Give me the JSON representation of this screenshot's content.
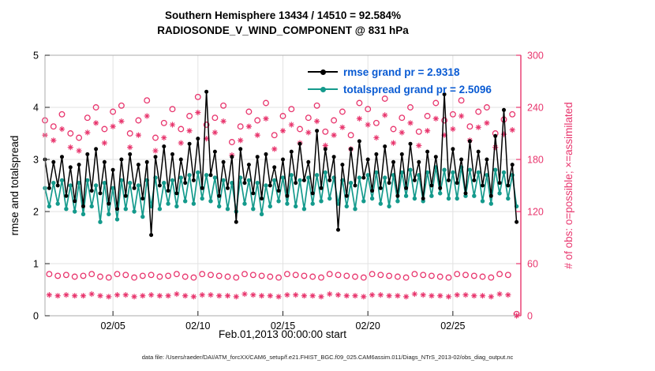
{
  "ui": {
    "legend_text_color": "#0a5bd3",
    "grid_color": "#e2e2e2",
    "frame_color": "#ababab",
    "tick_color": "#222222"
  },
  "chart_data": {
    "type": "line",
    "title_line1": "Southern Hemisphere 13434 / 14510 = 92.584%",
    "title_line2": "RADIOSONDE_V_WIND_COMPONENT @ 831 hPa",
    "caption": "data file: /Users/raeder/DAI/ATM_forcXX/CAM6_setup/f.e21.FHIST_BGC.f09_025.CAM6assim.011/Diags_NTrS_2013-02/obs_diag_output.nc",
    "time_step_hours": 6,
    "x_axis": {
      "label": "Feb.01,2013 00:00:00 start",
      "tick_labels": [
        "02/05",
        "02/10",
        "02/15",
        "02/20",
        "02/25"
      ],
      "tick_days": [
        4,
        9,
        14,
        19,
        24
      ],
      "range_days": [
        0,
        28
      ]
    },
    "y_left": {
      "label": "rmse and totalspread",
      "ticks": [
        0,
        1,
        2,
        3,
        4,
        5
      ],
      "range": [
        0,
        5
      ]
    },
    "y_right": {
      "label": "# of obs: o=possible; ×=assimilated",
      "ticks": [
        0,
        60,
        120,
        180,
        240,
        300
      ],
      "range": [
        0,
        300
      ],
      "color": "#e8356d"
    },
    "series": [
      {
        "name": "rmse",
        "legend": "rmse grand pr = 2.9318",
        "color": "#000000",
        "axis": "left",
        "marker": "dot",
        "values": [
          3.0,
          2.45,
          2.95,
          2.5,
          3.05,
          2.3,
          2.85,
          2.2,
          2.9,
          2.1,
          3.1,
          2.4,
          3.2,
          2.35,
          2.95,
          2.15,
          2.8,
          2.05,
          3.0,
          2.3,
          3.1,
          2.45,
          2.9,
          2.25,
          2.95,
          1.55,
          3.05,
          2.5,
          3.25,
          2.4,
          3.1,
          2.35,
          3.0,
          2.55,
          3.3,
          2.6,
          3.4,
          2.45,
          4.3,
          2.7,
          3.15,
          2.3,
          2.95,
          2.45,
          3.05,
          1.8,
          3.2,
          2.55,
          2.9,
          2.35,
          3.05,
          2.25,
          3.1,
          2.5,
          2.85,
          2.4,
          3.0,
          2.3,
          3.15,
          2.55,
          3.3,
          2.6,
          2.95,
          2.35,
          3.55,
          2.45,
          3.2,
          2.6,
          3.05,
          1.65,
          2.9,
          2.3,
          3.2,
          2.5,
          3.35,
          2.65,
          3.0,
          2.4,
          3.1,
          2.45,
          3.25,
          2.55,
          2.95,
          2.3,
          3.1,
          2.45,
          3.3,
          2.6,
          2.95,
          2.25,
          3.15,
          2.5,
          3.05,
          2.45,
          4.25,
          2.6,
          3.2,
          2.55,
          3.0,
          2.35,
          3.35,
          2.6,
          3.15,
          2.5,
          3.0,
          2.3,
          3.45,
          2.55,
          3.95,
          2.5,
          2.9,
          1.8
        ]
      },
      {
        "name": "totalspread",
        "legend": "totalspread grand pr = 2.5096",
        "color": "#149a8c",
        "axis": "left",
        "marker": "dot",
        "values": [
          2.45,
          2.1,
          2.55,
          2.15,
          2.6,
          2.05,
          2.5,
          2.0,
          2.55,
          1.95,
          2.6,
          2.1,
          2.5,
          1.8,
          2.55,
          1.95,
          2.45,
          1.85,
          2.6,
          2.05,
          2.55,
          2.0,
          2.5,
          1.9,
          2.6,
          2.1,
          2.65,
          2.05,
          2.55,
          2.15,
          2.6,
          2.1,
          2.65,
          2.2,
          2.7,
          2.15,
          2.75,
          2.25,
          2.7,
          2.2,
          2.65,
          2.1,
          2.6,
          2.05,
          2.55,
          2.0,
          2.65,
          2.15,
          2.6,
          2.05,
          2.55,
          1.95,
          2.5,
          2.1,
          2.6,
          2.2,
          2.65,
          2.15,
          2.7,
          2.1,
          2.6,
          2.05,
          2.65,
          2.15,
          2.7,
          2.2,
          2.75,
          2.25,
          2.65,
          2.15,
          2.6,
          2.1,
          2.55,
          2.05,
          2.65,
          2.2,
          2.7,
          2.25,
          2.75,
          2.15,
          2.65,
          2.1,
          2.7,
          2.2,
          2.75,
          2.3,
          2.8,
          2.25,
          2.7,
          2.2,
          2.75,
          2.3,
          2.85,
          2.35,
          2.8,
          2.25,
          2.75,
          2.25,
          2.85,
          2.3,
          2.8,
          2.3,
          2.75,
          2.2,
          2.7,
          2.15,
          2.8,
          2.35,
          2.75,
          2.25,
          2.7,
          2.1
        ]
      },
      {
        "name": "possible",
        "legend": "o=possible",
        "color": "#e8356d",
        "axis": "right",
        "marker": "circle",
        "values": [
          225,
          48,
          218,
          46,
          232,
          47,
          210,
          45,
          205,
          46,
          228,
          48,
          240,
          45,
          215,
          44,
          235,
          48,
          242,
          47,
          210,
          44,
          225,
          46,
          248,
          47,
          205,
          45,
          222,
          46,
          238,
          48,
          215,
          45,
          230,
          44,
          252,
          48,
          220,
          47,
          228,
          46,
          242,
          45,
          200,
          44,
          218,
          48,
          235,
          47,
          225,
          46,
          245,
          45,
          208,
          44,
          230,
          48,
          238,
          47,
          215,
          46,
          228,
          45,
          242,
          44,
          212,
          48,
          225,
          47,
          235,
          46,
          208,
          45,
          245,
          44,
          238,
          48,
          222,
          47,
          250,
          46,
          215,
          45,
          228,
          44,
          240,
          48,
          212,
          47,
          230,
          46,
          245,
          45,
          225,
          44,
          232,
          48,
          248,
          47,
          218,
          46,
          235,
          45,
          240,
          44,
          210,
          48,
          226,
          47,
          232,
          2
        ]
      },
      {
        "name": "assimilated",
        "legend": "×=assimilated",
        "color": "#e8356d",
        "axis": "right",
        "marker": "asterisk",
        "values": [
          208,
          24,
          202,
          23,
          215,
          24,
          194,
          23,
          190,
          23,
          211,
          25,
          222,
          23,
          199,
          22,
          218,
          24,
          224,
          24,
          194,
          22,
          208,
          23,
          230,
          24,
          190,
          23,
          205,
          23,
          220,
          25,
          199,
          23,
          213,
          22,
          234,
          24,
          204,
          24,
          211,
          23,
          224,
          23,
          185,
          22,
          202,
          25,
          218,
          24,
          208,
          23,
          227,
          23,
          192,
          22,
          213,
          24,
          220,
          24,
          199,
          23,
          211,
          23,
          224,
          22,
          196,
          25,
          208,
          24,
          217,
          23,
          192,
          23,
          227,
          22,
          220,
          24,
          205,
          24,
          231,
          23,
          199,
          23,
          211,
          22,
          222,
          25,
          196,
          24,
          213,
          23,
          227,
          23,
          208,
          22,
          215,
          24,
          230,
          24,
          202,
          23,
          217,
          23,
          222,
          22,
          194,
          25,
          209,
          24,
          214,
          0
        ]
      }
    ]
  }
}
